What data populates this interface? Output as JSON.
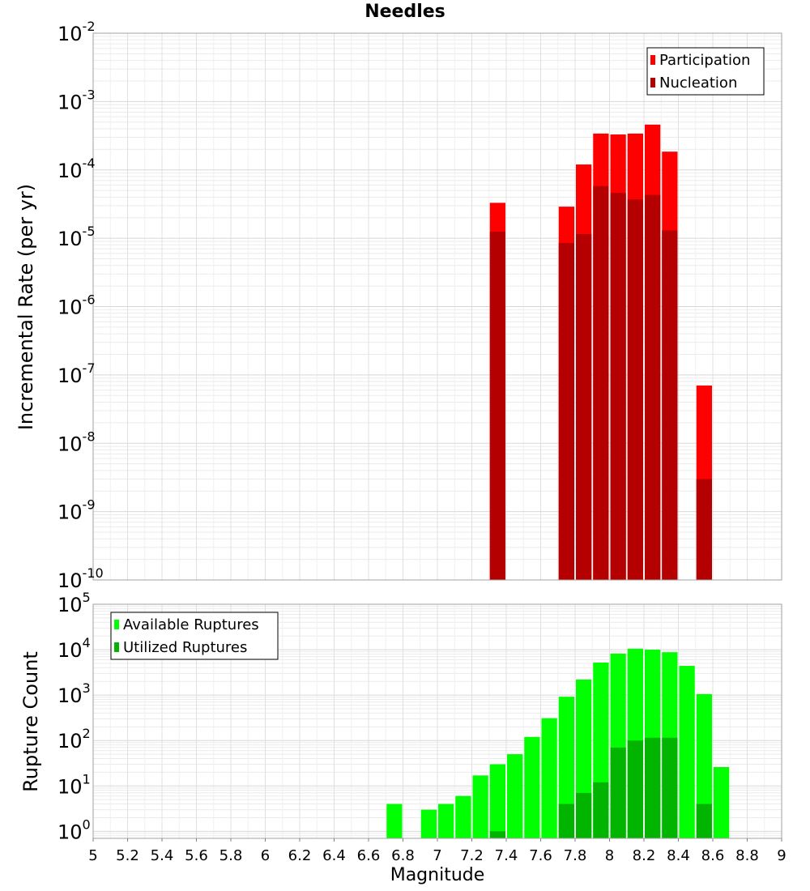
{
  "chart_data": [
    {
      "type": "bar",
      "title": "Needles",
      "xlabel": "Magnitude",
      "ylabel": "Incremental Rate (per yr)",
      "yscale": "log",
      "ylim": [
        1e-10,
        0.01
      ],
      "xlim": [
        5,
        9
      ],
      "ytick_exponents": [
        -10,
        -9,
        -8,
        -7,
        -6,
        -5,
        -4,
        -3,
        -2
      ],
      "legend_position": "top-right",
      "series": [
        {
          "name": "Participation",
          "color": "#ff0000",
          "x": [
            7.35,
            7.75,
            7.85,
            7.95,
            8.05,
            8.15,
            8.25,
            8.35,
            8.55
          ],
          "values": [
            3.3e-05,
            2.9e-05,
            0.00012,
            0.00034,
            0.00033,
            0.00034,
            0.00046,
            0.000185,
            7e-08
          ]
        },
        {
          "name": "Nucleation",
          "color": "#b40000",
          "x": [
            7.35,
            7.75,
            7.85,
            7.95,
            8.05,
            8.15,
            8.25,
            8.35,
            8.55
          ],
          "values": [
            1.25e-05,
            8.5e-06,
            1.15e-05,
            5.8e-05,
            4.6e-05,
            3.7e-05,
            4.3e-05,
            1.3e-05,
            3e-09
          ]
        }
      ]
    },
    {
      "type": "bar",
      "xlabel": "Magnitude",
      "ylabel": "Rupture Count",
      "yscale": "log",
      "ylim": [
        0.7,
        100000.0
      ],
      "xlim": [
        5,
        9
      ],
      "ytick_exponents": [
        0,
        1,
        2,
        3,
        4,
        5
      ],
      "legend_position": "top-left",
      "series": [
        {
          "name": "Available Ruptures",
          "color": "#00ff00",
          "x": [
            6.75,
            6.95,
            7.05,
            7.15,
            7.25,
            7.35,
            7.45,
            7.55,
            7.65,
            7.75,
            7.85,
            7.95,
            8.05,
            8.15,
            8.25,
            8.35,
            8.45,
            8.55,
            8.65
          ],
          "values": [
            4,
            3,
            4,
            6,
            17,
            30,
            50,
            120,
            310,
            920,
            2200,
            5200,
            8200,
            10500,
            10000,
            8800,
            4400,
            1050,
            26
          ]
        },
        {
          "name": "Utilized Ruptures",
          "color": "#00b400",
          "x": [
            7.35,
            7.75,
            7.85,
            7.95,
            8.05,
            8.15,
            8.25,
            8.35,
            8.55
          ],
          "values": [
            1,
            4,
            7,
            12,
            70,
            100,
            115,
            115,
            4
          ]
        }
      ]
    }
  ],
  "xticks": [
    "5",
    "5.2",
    "5.4",
    "5.6",
    "5.8",
    "6",
    "6.2",
    "6.4",
    "6.6",
    "6.8",
    "7",
    "7.2",
    "7.4",
    "7.6",
    "7.8",
    "8",
    "8.2",
    "8.4",
    "8.6",
    "8.8",
    "9"
  ]
}
